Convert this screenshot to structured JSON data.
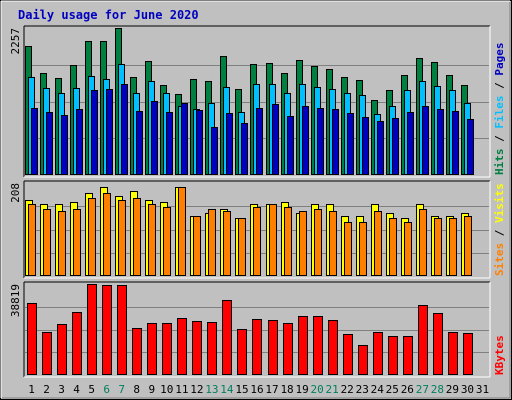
{
  "chart_data": {
    "type": "bar",
    "title": "Daily usage for June 2020",
    "days": [
      "1",
      "2",
      "3",
      "4",
      "5",
      "6",
      "7",
      "8",
      "9",
      "10",
      "11",
      "12",
      "13",
      "14",
      "15",
      "16",
      "17",
      "18",
      "19",
      "20",
      "21",
      "22",
      "23",
      "24",
      "25",
      "26",
      "27",
      "28",
      "29",
      "30",
      "31"
    ],
    "weekend_days": [
      "6",
      "7",
      "13",
      "14",
      "20",
      "21",
      "27",
      "28"
    ],
    "panels": [
      {
        "id": "hits-files-pages",
        "max_label": "2257",
        "max": 2257,
        "series": [
          {
            "name": "Hits",
            "color": "#008040",
            "values": [
              1980,
              1560,
              1490,
              1690,
              2060,
              2050,
              2250,
              1510,
              1750,
              1380,
              1240,
              1480,
              1450,
              1830,
              1320,
              1700,
              1720,
              1560,
              1770,
              1680,
              1630,
              1500,
              1460,
              1150,
              1300,
              1530,
              1800,
              1740,
              1530,
              1380
            ]
          },
          {
            "name": "Files",
            "color": "#00c0ff",
            "values": [
              1510,
              1340,
              1260,
              1340,
              1520,
              1480,
              1700,
              1260,
              1450,
              1260,
              1060,
              1020,
              1110,
              1350,
              970,
              1390,
              1390,
              1260,
              1390,
              1350,
              1320,
              1260,
              1230,
              930,
              1060,
              1310,
              1440,
              1360,
              1300,
              1100
            ]
          },
          {
            "name": "Pages",
            "color": "#0000c0",
            "values": [
              1030,
              960,
              920,
              1020,
              1300,
              1320,
              1390,
              990,
              1130,
              960,
              1100,
              1000,
              740,
              950,
              800,
              1030,
              1090,
              910,
              1060,
              1030,
              1010,
              950,
              890,
              830,
              870,
              970,
              1060,
              1010,
              990,
              860
            ]
          }
        ],
        "axis_labels": [
          {
            "text": "Hits",
            "color": "#008040"
          },
          {
            "text": "Files",
            "color": "#00c0ff"
          },
          {
            "text": "Pages",
            "color": "#0000c0"
          }
        ]
      },
      {
        "id": "visits-sites",
        "max_label": "208",
        "max": 208,
        "series": [
          {
            "name": "Visits",
            "color": "#ffff00",
            "values": [
              170,
              160,
              160,
              165,
              185,
              200,
              180,
              190,
              170,
              165,
              200,
              135,
              140,
              150,
              130,
              160,
              160,
              165,
              140,
              160,
              160,
              135,
              135,
              160,
              140,
              130,
              160,
              135,
              135,
              140
            ]
          },
          {
            "name": "Sites",
            "color": "#ff8000",
            "values": [
              160,
              150,
              145,
              150,
              175,
              185,
              170,
              175,
              160,
              155,
              200,
              135,
              150,
              145,
              130,
              155,
              160,
              155,
              145,
              150,
              145,
              120,
              120,
              145,
              130,
              120,
              150,
              130,
              130,
              135
            ]
          }
        ],
        "axis_labels": [
          {
            "text": "Sites",
            "color": "#ff8000"
          },
          {
            "text": "Visits",
            "color": "#ffff00"
          }
        ]
      },
      {
        "id": "kbytes",
        "max_label": "38819",
        "max": 38819,
        "series": [
          {
            "name": "KBytes",
            "color": "#ff0000",
            "values": [
              30800,
              18500,
              21800,
              27000,
              38800,
              38500,
              38500,
              20000,
              22000,
              22000,
              24500,
              23000,
              22500,
              32000,
              19500,
              24000,
              23500,
              22000,
              25000,
              25000,
              23500,
              17500,
              13000,
              18500,
              16800,
              16800,
              30000,
              26500,
              18500,
              18000
            ]
          }
        ],
        "axis_labels": [
          {
            "text": "KBytes",
            "color": "#ff0000"
          }
        ]
      }
    ]
  }
}
